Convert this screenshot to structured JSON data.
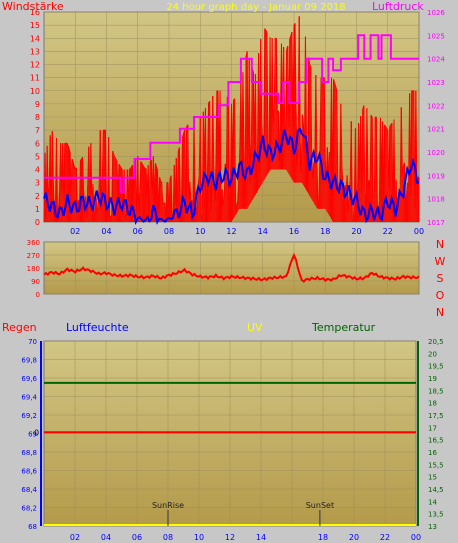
{
  "colors": {
    "background": "#c7c7c7",
    "plot_top": "#d2c685",
    "plot_bottom": "#b49a4a",
    "grid": "#9c8f5e",
    "wind_gust": "#ff0000",
    "wind_avg": "#0000ff",
    "pressure": "#ff00ff",
    "direction": "#ff0000",
    "rain": "#ff0000",
    "humidity": "#0000ff",
    "uv": "#ffff00",
    "temperature": "#006400",
    "temp_axis": "#006400",
    "humidity_axis": "#0000ff"
  },
  "header": {
    "left_title": "Windstärke",
    "center_title": "24 hour graph day - Januar 09 2018",
    "right_title": "Luftdruck"
  },
  "lower_header": {
    "rain": "Regen",
    "humidity": "Luftfeuchte",
    "uv": "UV",
    "temperature": "Temperatur"
  },
  "chart_data": [
    {
      "type": "line",
      "xlabels": [
        "02",
        "04",
        "06",
        "08",
        "10",
        "12",
        "14",
        "16",
        "18",
        "20",
        "22",
        "00"
      ],
      "ylabel_left": "Windstärke",
      "ylabel_right": "Luftdruck",
      "ylim_left": [
        0,
        16
      ],
      "yticks_left": [
        "0",
        "1",
        "2",
        "3",
        "4",
        "5",
        "6",
        "7",
        "8",
        "9",
        "10",
        "11",
        "12",
        "13",
        "14",
        "15",
        "16"
      ],
      "ylim_right": [
        1017,
        1026
      ],
      "yticks_right": [
        "1017",
        "1018",
        "1019",
        "1020",
        "1021",
        "1022",
        "1023",
        "1024",
        "1025",
        "1026"
      ],
      "series": [
        {
          "name": "wind_gust",
          "sample_hours": [
            0,
            0.5,
            1,
            1.5,
            2,
            2.5,
            3,
            3.5,
            4,
            4.5,
            5,
            5.5,
            6,
            6.5,
            7,
            7.5,
            8,
            8.5,
            9,
            9.5,
            10,
            10.5,
            11,
            11.5,
            12,
            12.5,
            13,
            13.5,
            14,
            14.5,
            15,
            15.5,
            16,
            16.5,
            17,
            17.5,
            18,
            18.5,
            19,
            19.5,
            20,
            20.5,
            21,
            21.5,
            22,
            22.5,
            23,
            23.5,
            24
          ],
          "low": [
            0,
            0,
            0,
            0,
            0,
            0,
            0,
            0,
            0,
            0,
            0,
            0,
            0,
            0,
            0,
            0,
            0,
            0,
            0,
            0,
            0,
            0,
            0,
            0,
            0,
            1,
            1,
            2,
            3,
            4,
            4,
            4,
            3,
            3,
            2,
            1,
            1,
            0,
            0,
            0,
            0,
            0,
            0,
            0,
            0,
            0,
            0,
            0,
            0
          ],
          "high": [
            5,
            7,
            6,
            6,
            4,
            5,
            6,
            7,
            7,
            5,
            4,
            4,
            5,
            4,
            5,
            3,
            3,
            5,
            7,
            8,
            8,
            9,
            10,
            10,
            9,
            10,
            13,
            11,
            15,
            14,
            14,
            13,
            15,
            16,
            12,
            11,
            11,
            11,
            9,
            8,
            7,
            9,
            8,
            8,
            7,
            8,
            9,
            10,
            10
          ]
        },
        {
          "name": "wind_avg",
          "sample_hours": [
            0,
            0.5,
            1,
            1.5,
            2,
            2.5,
            3,
            3.5,
            4,
            4.5,
            5,
            5.5,
            6,
            6.5,
            7,
            7.5,
            8,
            8.5,
            9,
            9.5,
            10,
            10.5,
            11,
            11.5,
            12,
            12.5,
            13,
            13.5,
            14,
            14.5,
            15,
            15.5,
            16,
            16.5,
            17,
            17.5,
            18,
            18.5,
            19,
            19.5,
            20,
            20.5,
            21,
            21.5,
            22,
            22.5,
            23,
            23.5,
            24
          ],
          "values": [
            1.8,
            1.2,
            0.6,
            1.5,
            1.0,
            1.6,
            1.3,
            2.0,
            1.5,
            1.1,
            1.5,
            0.9,
            0.3,
            0.1,
            0.8,
            0.1,
            0.2,
            0.6,
            1.5,
            0.6,
            2.8,
            3.5,
            3.0,
            3.6,
            3.3,
            4.2,
            3.6,
            4.7,
            6.0,
            5.2,
            5.6,
            6.7,
            5.6,
            7.3,
            4.5,
            5.1,
            3.4,
            3.0,
            2.7,
            2.2,
            1.6,
            0.5,
            0.8,
            0.5,
            1.6,
            1.0,
            2.5,
            4.5,
            3.2
          ]
        },
        {
          "name": "pressure",
          "steps": [
            [
              0,
              1018.9
            ],
            [
              4.9,
              1018.3
            ],
            [
              5.1,
              1018.9
            ],
            [
              5.8,
              1019.7
            ],
            [
              6.8,
              1020.4
            ],
            [
              8.7,
              1021.0
            ],
            [
              9.6,
              1021.5
            ],
            [
              11.2,
              1022.0
            ],
            [
              11.8,
              1023.0
            ],
            [
              12.6,
              1024.0
            ],
            [
              13.3,
              1023.0
            ],
            [
              13.9,
              1022.5
            ],
            [
              15.0,
              1022.1
            ],
            [
              15.3,
              1023.0
            ],
            [
              15.7,
              1022.1
            ],
            [
              16.3,
              1023.0
            ],
            [
              16.8,
              1024.0
            ],
            [
              17.8,
              1023.0
            ],
            [
              18.2,
              1024.0
            ],
            [
              18.5,
              1023.5
            ],
            [
              19.0,
              1024.0
            ],
            [
              20.1,
              1025.0
            ],
            [
              20.5,
              1024.0
            ],
            [
              20.9,
              1025.0
            ],
            [
              21.4,
              1024.0
            ],
            [
              21.6,
              1025.0
            ],
            [
              22.2,
              1024.0
            ],
            [
              24.0,
              1024.0
            ]
          ]
        }
      ]
    },
    {
      "type": "line",
      "ylim": [
        0,
        360
      ],
      "yticks": [
        "0",
        "90",
        "180",
        "270",
        "360"
      ],
      "direction_labels": [
        "N",
        "W",
        "S",
        "O",
        "N"
      ],
      "series": [
        {
          "name": "wind_direction",
          "sample_hours": [
            0,
            0.5,
            1,
            1.5,
            2,
            2.5,
            3,
            3.5,
            4,
            4.5,
            5,
            5.5,
            6,
            6.5,
            7,
            7.5,
            8,
            8.5,
            9,
            9.5,
            10,
            10.5,
            11,
            11.5,
            12,
            12.5,
            13,
            13.5,
            14,
            14.5,
            15,
            15.5,
            16,
            16.5,
            17,
            17.5,
            18,
            18.5,
            19,
            19.5,
            20,
            20.5,
            21,
            21.5,
            22,
            22.5,
            23,
            23.5,
            24
          ],
          "values": [
            135,
            150,
            140,
            170,
            155,
            175,
            160,
            140,
            145,
            130,
            125,
            130,
            120,
            115,
            125,
            110,
            130,
            145,
            165,
            135,
            120,
            115,
            125,
            110,
            120,
            115,
            110,
            105,
            100,
            110,
            115,
            120,
            275,
            90,
            105,
            110,
            100,
            100,
            130,
            120,
            105,
            110,
            145,
            120,
            110,
            105,
            120,
            115,
            115
          ]
        }
      ]
    },
    {
      "type": "line",
      "ylim_left": [
        68,
        70
      ],
      "yticks_left": [
        "68",
        "68,2",
        "68,4",
        "68,6",
        "68,8",
        "69",
        "69,2",
        "69,4",
        "69,6",
        "69,8",
        "70"
      ],
      "ylim_right": [
        13,
        20.5
      ],
      "yticks_right": [
        "13",
        "13,5",
        "14",
        "14,5",
        "15",
        "15,5",
        "16",
        "16,5",
        "17",
        "17,5",
        "18",
        "18,5",
        "19",
        "19,5",
        "20",
        "20,5"
      ],
      "rain_axis_label": "0",
      "series": [
        {
          "name": "temperature",
          "constant": 18.8
        },
        {
          "name": "rain",
          "constant": 0
        },
        {
          "name": "uv",
          "constant": 0
        }
      ],
      "annotations": [
        {
          "label": "SunRise",
          "hour": 8.0
        },
        {
          "label": "SunSet",
          "hour": 17.8
        }
      ]
    }
  ]
}
